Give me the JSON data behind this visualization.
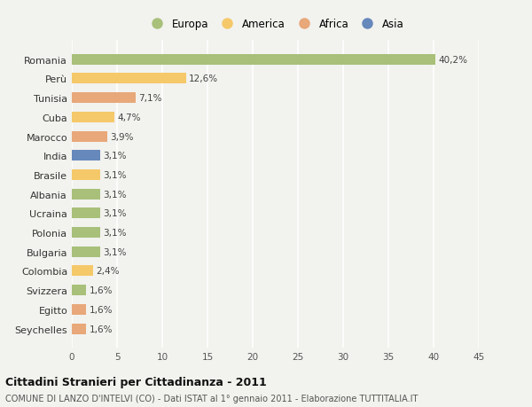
{
  "categories": [
    "Romania",
    "Perù",
    "Tunisia",
    "Cuba",
    "Marocco",
    "India",
    "Brasile",
    "Albania",
    "Ucraina",
    "Polonia",
    "Bulgaria",
    "Colombia",
    "Svizzera",
    "Egitto",
    "Seychelles"
  ],
  "values": [
    40.2,
    12.6,
    7.1,
    4.7,
    3.9,
    3.1,
    3.1,
    3.1,
    3.1,
    3.1,
    3.1,
    2.4,
    1.6,
    1.6,
    1.6
  ],
  "labels": [
    "40,2%",
    "12,6%",
    "7,1%",
    "4,7%",
    "3,9%",
    "3,1%",
    "3,1%",
    "3,1%",
    "3,1%",
    "3,1%",
    "3,1%",
    "2,4%",
    "1,6%",
    "1,6%",
    "1,6%"
  ],
  "colors": [
    "#a8c07a",
    "#f5c96a",
    "#e8a87a",
    "#f5c96a",
    "#e8a87a",
    "#6688bb",
    "#f5c96a",
    "#a8c07a",
    "#a8c07a",
    "#a8c07a",
    "#a8c07a",
    "#f5c96a",
    "#a8c07a",
    "#e8a87a",
    "#e8a87a"
  ],
  "legend_labels": [
    "Europa",
    "America",
    "Africa",
    "Asia"
  ],
  "legend_colors": [
    "#a8c07a",
    "#f5c96a",
    "#e8a87a",
    "#6688bb"
  ],
  "title": "Cittadini Stranieri per Cittadinanza - 2011",
  "subtitle": "COMUNE DI LANZO D'INTELVI (CO) - Dati ISTAT al 1° gennaio 2011 - Elaborazione TUTTITALIA.IT",
  "xlim": [
    0,
    45
  ],
  "xticks": [
    0,
    5,
    10,
    15,
    20,
    25,
    30,
    35,
    40,
    45
  ],
  "background_color": "#f2f2ee",
  "grid_color": "#ffffff",
  "bar_height": 0.55
}
